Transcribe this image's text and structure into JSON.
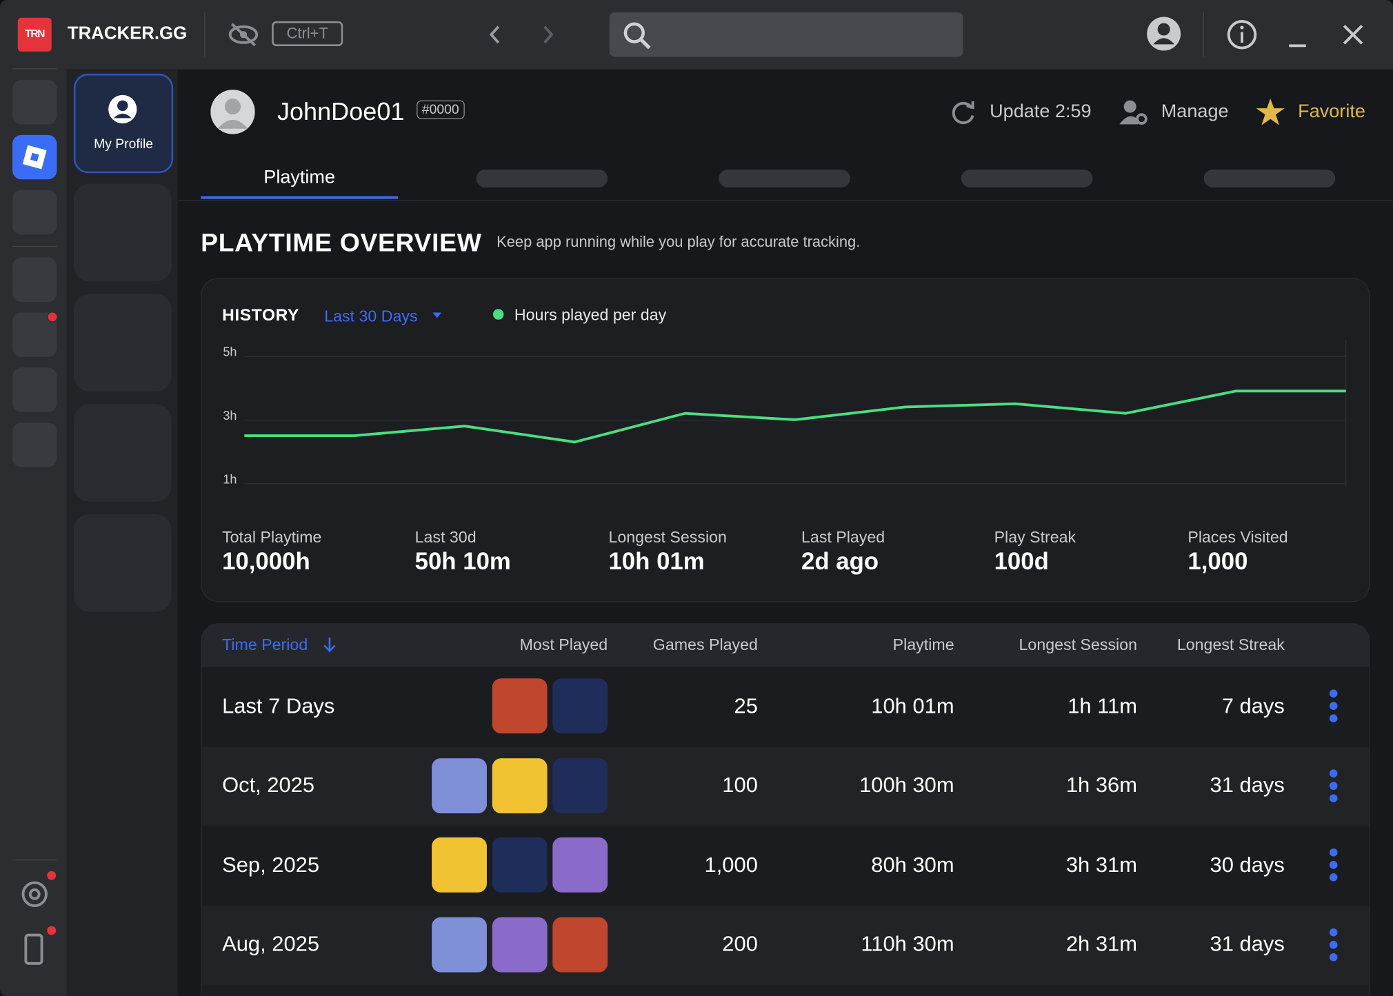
{
  "app": {
    "logo": "TRN",
    "brand": "TRACKER.GG",
    "shortcut": "Ctrl+T"
  },
  "sidebar": {
    "my_profile": "My Profile"
  },
  "profile": {
    "name": "JohnDoe01",
    "tag": "#0000",
    "update": "Update 2:59",
    "manage": "Manage",
    "favorite": "Favorite"
  },
  "tabs": [
    "Playtime"
  ],
  "overview": {
    "title": "PLAYTIME OVERVIEW",
    "note": "Keep app running while you play for accurate tracking."
  },
  "history": {
    "title": "HISTORY",
    "range": "Last 30 Days"
  },
  "chart_data": {
    "type": "line",
    "series": [
      {
        "name": "Hours played per day",
        "color": "#4ade80",
        "values": [
          2.4,
          2.4,
          2.7,
          2.2,
          3.1,
          2.9,
          3.3,
          3.4,
          3.1,
          3.8,
          3.8
        ]
      }
    ],
    "ylim": [
      0.8,
      5.4
    ],
    "yticks": [
      {
        "value": 1,
        "label": "1h"
      },
      {
        "value": 3,
        "label": "3h"
      },
      {
        "value": 5,
        "label": "5h"
      }
    ],
    "grid": true
  },
  "stats": [
    {
      "label": "Total Playtime",
      "value": "10,000h"
    },
    {
      "label": "Last 30d",
      "value": "50h 10m"
    },
    {
      "label": "Longest Session",
      "value": "10h 01m"
    },
    {
      "label": "Last Played",
      "value": "2d ago"
    },
    {
      "label": "Play Streak",
      "value": "100d"
    },
    {
      "label": "Places Visited",
      "value": "1,000"
    }
  ],
  "table": {
    "columns": [
      "Time Period",
      "Most Played",
      "Games Played",
      "Playtime",
      "Longest Session",
      "Longest Streak"
    ],
    "rows": [
      [
        "Last 7 Days",
        "25",
        "10h 01m",
        "1h 11m",
        "7 days"
      ],
      [
        "Oct, 2025",
        "100",
        "100h 30m",
        "1h 36m",
        "31 days"
      ],
      [
        "Sep, 2025",
        "1,000",
        "80h 30m",
        "3h 31m",
        "30 days"
      ],
      [
        "Aug, 2025",
        "200",
        "110h 30m",
        "2h 31m",
        "31 days"
      ]
    ]
  }
}
